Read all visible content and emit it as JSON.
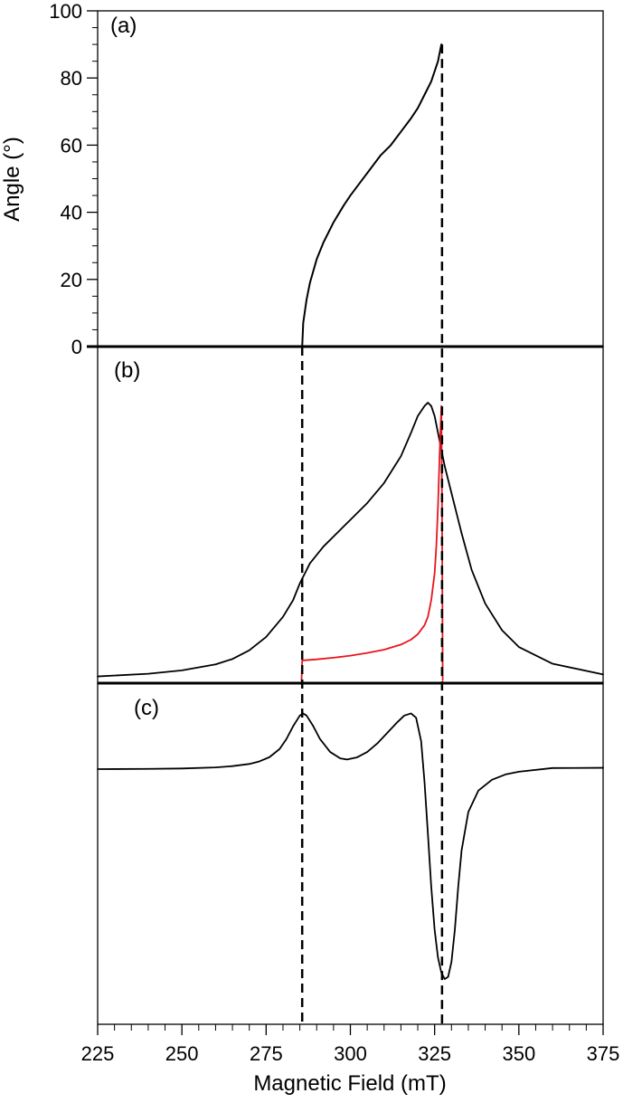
{
  "chart_data": [
    {
      "type": "line",
      "panel_label": "(a)",
      "ylabel": "Angle (°)",
      "xlim": [
        225,
        375
      ],
      "ylim": [
        0,
        100
      ],
      "y_ticks": [
        0,
        20,
        40,
        60,
        80,
        100
      ],
      "y_tick_labels": [
        "0",
        "20",
        "40",
        "60",
        "80",
        "100"
      ],
      "grid": false,
      "series": [
        {
          "color": "#000000",
          "x": [
            285.7,
            286,
            287,
            288,
            290,
            292,
            295,
            298,
            300,
            303,
            306,
            309,
            312,
            315,
            318,
            320,
            322,
            324,
            325,
            326,
            327
          ],
          "y": [
            0,
            7,
            14,
            19,
            26,
            31,
            37,
            42,
            45,
            49,
            53,
            57,
            60,
            64,
            68,
            71,
            75,
            79,
            82,
            85,
            90
          ]
        }
      ]
    },
    {
      "type": "line",
      "panel_label": "(b)",
      "xlim": [
        225,
        375
      ],
      "ylim": [
        0,
        1
      ],
      "grid": false,
      "series": [
        {
          "color": "#000000",
          "x": [
            225,
            240,
            250,
            260,
            265,
            270,
            275,
            280,
            283,
            285,
            288,
            292,
            296,
            300,
            305,
            310,
            315,
            318,
            320,
            322,
            323,
            324,
            325,
            326,
            327,
            328,
            330,
            333,
            336,
            340,
            345,
            350,
            360,
            375
          ],
          "y": [
            0.012,
            0.02,
            0.03,
            0.048,
            0.064,
            0.09,
            0.13,
            0.19,
            0.24,
            0.29,
            0.35,
            0.4,
            0.44,
            0.48,
            0.53,
            0.59,
            0.67,
            0.74,
            0.79,
            0.82,
            0.83,
            0.82,
            0.79,
            0.74,
            0.69,
            0.64,
            0.56,
            0.44,
            0.33,
            0.23,
            0.15,
            0.1,
            0.05,
            0.018
          ]
        },
        {
          "color": "#e8141c",
          "x": [
            285.5,
            285.7,
            286,
            290,
            295,
            300,
            305,
            310,
            315,
            318,
            320,
            322,
            323,
            324,
            325,
            325.5,
            326,
            326.5,
            327,
            327.2,
            327.4
          ],
          "y": [
            0,
            0.06,
            0.06,
            0.063,
            0.068,
            0.074,
            0.082,
            0.092,
            0.107,
            0.122,
            0.138,
            0.165,
            0.19,
            0.24,
            0.32,
            0.4,
            0.52,
            0.68,
            0.82,
            0.5,
            0
          ]
        }
      ]
    },
    {
      "type": "line",
      "panel_label": "(c)",
      "xlabel": "Magnetic Field (mT)",
      "xlim": [
        225,
        375
      ],
      "ylim": [
        -1,
        0.4
      ],
      "x_ticks": [
        225,
        250,
        275,
        300,
        325,
        350,
        375
      ],
      "x_tick_labels": [
        "225",
        "250",
        "275",
        "300",
        "325",
        "350",
        "375"
      ],
      "grid": false,
      "series": [
        {
          "color": "#000000",
          "x": [
            225,
            240,
            250,
            260,
            265,
            270,
            273,
            276,
            279,
            281,
            283,
            285,
            286,
            287,
            289,
            291,
            294,
            297,
            299,
            302,
            305,
            308,
            311,
            314,
            316,
            318,
            319.5,
            321,
            322,
            323,
            324,
            325,
            326,
            327,
            328,
            329,
            330,
            331,
            332,
            333,
            335,
            338,
            342,
            346,
            350,
            360,
            375
          ],
          "y": [
            0,
            0.001,
            0.003,
            0.008,
            0.014,
            0.024,
            0.036,
            0.056,
            0.094,
            0.14,
            0.2,
            0.25,
            0.26,
            0.25,
            0.2,
            0.14,
            0.08,
            0.05,
            0.045,
            0.055,
            0.08,
            0.12,
            0.17,
            0.22,
            0.25,
            0.26,
            0.24,
            0.13,
            -0.06,
            -0.3,
            -0.55,
            -0.75,
            -0.88,
            -0.95,
            -0.98,
            -0.97,
            -0.9,
            -0.75,
            -0.55,
            -0.38,
            -0.2,
            -0.1,
            -0.05,
            -0.025,
            -0.012,
            0.005,
            0.006
          ]
        }
      ]
    }
  ],
  "reference_lines": {
    "style": "dashed",
    "color": "#000000",
    "x": [
      285.7,
      327.2
    ]
  }
}
